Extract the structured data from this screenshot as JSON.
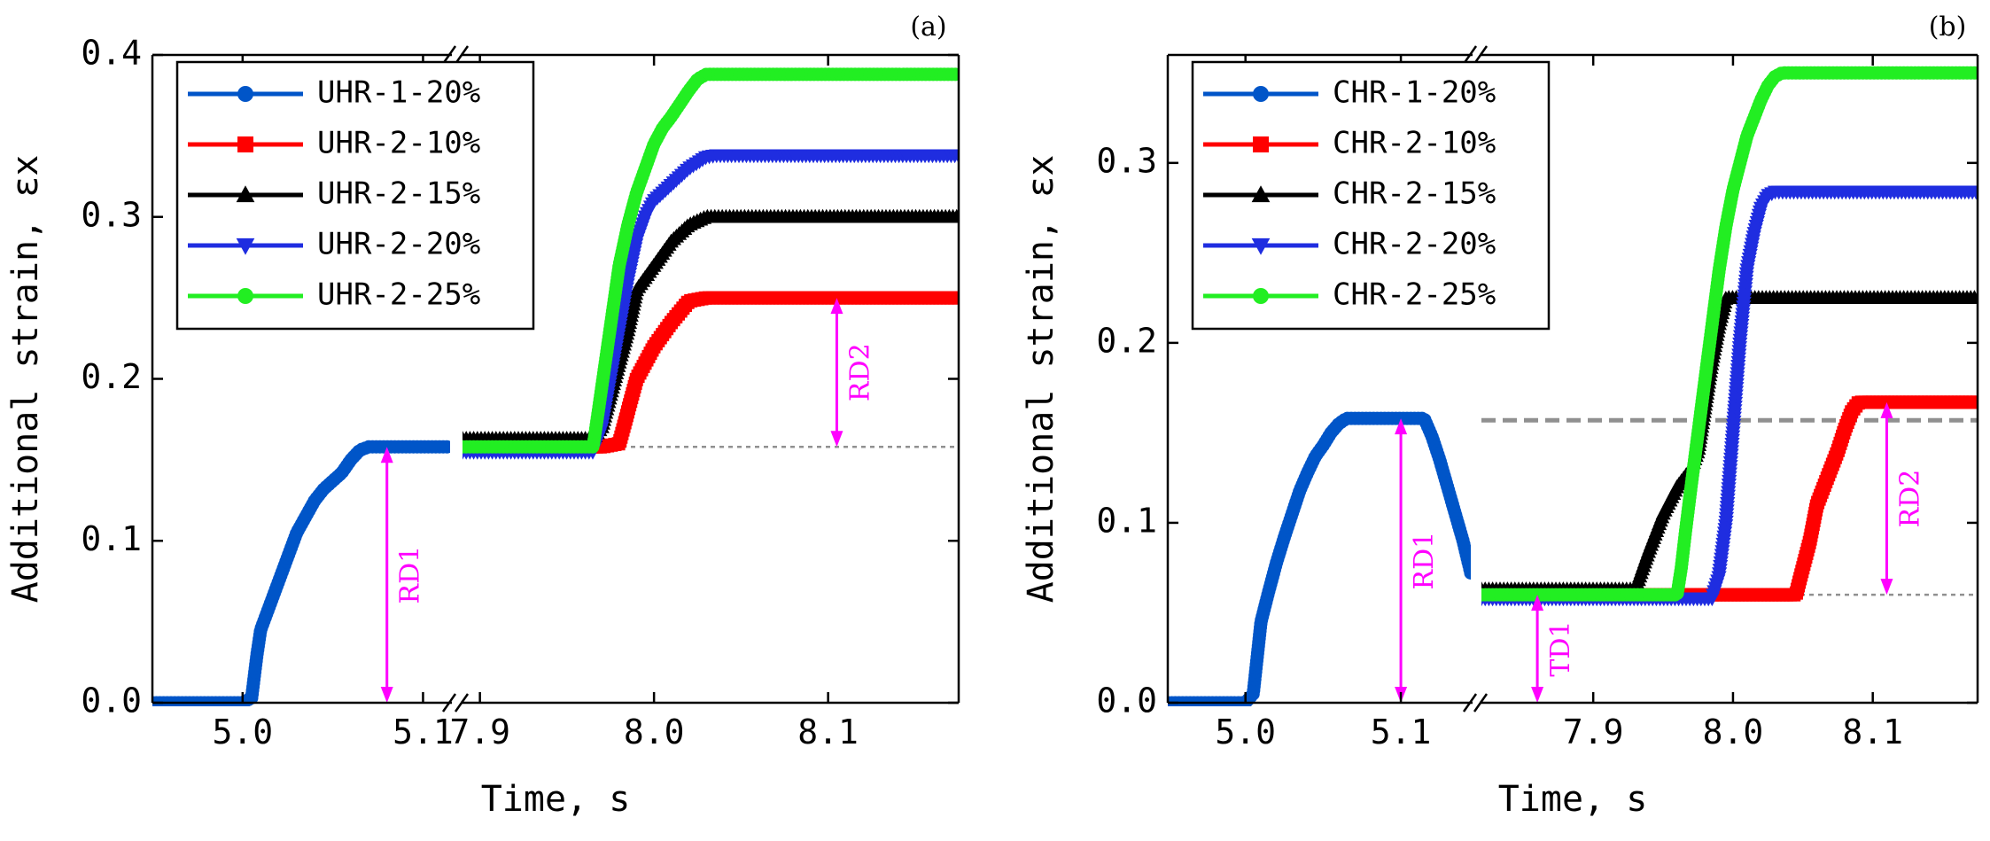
{
  "chart_data": [
    {
      "type": "line",
      "panel_label": "(a)",
      "xlabel": "Time, s",
      "ylabel": "Additional strain, εx",
      "ylim": [
        0,
        0.4
      ],
      "yticks": [
        "0.0",
        "0.1",
        "0.2",
        "0.3",
        "0.4"
      ],
      "xticks": [
        {
          "segment": 1,
          "value": 5.0,
          "label": "5.0"
        },
        {
          "segment": 1,
          "value": 5.1,
          "label": "5.1"
        },
        {
          "segment": 2,
          "value": 7.9,
          "label": "7.9"
        },
        {
          "segment": 2,
          "value": 8.0,
          "label": "8.0"
        },
        {
          "segment": 2,
          "value": 8.1,
          "label": "8.1"
        }
      ],
      "broken_axis": true,
      "segment1_xlim": [
        4.95,
        5.115
      ],
      "segment2_xlim": [
        7.89,
        8.175
      ],
      "legend_position": "top-left",
      "series": [
        {
          "name": "UHR-1-20%",
          "color": "#0055c8",
          "marker": "circle",
          "segment": 1,
          "x": [
            4.95,
            5.0,
            5.005,
            5.008,
            5.01,
            5.015,
            5.02,
            5.025,
            5.03,
            5.035,
            5.04,
            5.045,
            5.05,
            5.055,
            5.06,
            5.065,
            5.07,
            5.075,
            5.08,
            5.085,
            5.09,
            5.095,
            5.1,
            5.115
          ],
          "y": [
            0.0,
            0.0,
            0.003,
            0.03,
            0.045,
            0.06,
            0.075,
            0.09,
            0.105,
            0.115,
            0.125,
            0.132,
            0.137,
            0.142,
            0.15,
            0.156,
            0.158,
            0.158,
            0.158,
            0.158,
            0.158,
            0.158,
            0.158,
            0.158
          ]
        },
        {
          "name": "UHR-2-10%",
          "color": "#ff0000",
          "marker": "square",
          "segment": 2,
          "x": [
            7.89,
            7.97,
            7.98,
            7.985,
            7.99,
            8.0,
            8.01,
            8.02,
            8.03,
            8.175
          ],
          "y": [
            0.158,
            0.158,
            0.16,
            0.18,
            0.2,
            0.22,
            0.235,
            0.248,
            0.25,
            0.25
          ]
        },
        {
          "name": "UHR-2-15%",
          "color": "#000000",
          "marker": "triangle-up",
          "segment": 2,
          "x": [
            7.89,
            7.965,
            7.97,
            7.975,
            7.98,
            7.985,
            7.99,
            8.0,
            8.01,
            8.02,
            8.03,
            8.175
          ],
          "y": [
            0.163,
            0.163,
            0.17,
            0.19,
            0.21,
            0.23,
            0.255,
            0.27,
            0.285,
            0.295,
            0.3,
            0.3
          ]
        },
        {
          "name": "UHR-2-20%",
          "color": "#1f2de0",
          "marker": "triangle-down",
          "segment": 2,
          "x": [
            7.89,
            7.965,
            7.97,
            7.975,
            7.98,
            7.985,
            7.99,
            7.995,
            8.0,
            8.01,
            8.02,
            8.03,
            8.035,
            8.175
          ],
          "y": [
            0.155,
            0.155,
            0.17,
            0.2,
            0.23,
            0.26,
            0.285,
            0.3,
            0.31,
            0.32,
            0.33,
            0.337,
            0.338,
            0.338
          ]
        },
        {
          "name": "UHR-2-25%",
          "color": "#22ee22",
          "marker": "circle",
          "segment": 2,
          "x": [
            7.89,
            7.965,
            7.968,
            7.972,
            7.976,
            7.98,
            7.985,
            7.99,
            7.995,
            8.0,
            8.005,
            8.01,
            8.015,
            8.02,
            8.025,
            8.03,
            8.035,
            8.175
          ],
          "y": [
            0.158,
            0.158,
            0.18,
            0.21,
            0.24,
            0.27,
            0.295,
            0.315,
            0.33,
            0.345,
            0.355,
            0.362,
            0.37,
            0.378,
            0.385,
            0.388,
            0.388,
            0.388
          ]
        }
      ],
      "annotations": [
        {
          "label": "RD1",
          "segment": 1,
          "x": 5.08,
          "y_from": 0.0,
          "y_to": 0.158
        },
        {
          "label": "RD2",
          "segment": 2,
          "x": 8.105,
          "y_from": 0.158,
          "y_to": 0.25
        }
      ],
      "reference_lines": [
        {
          "segment": 2,
          "y": 0.158,
          "style": "dotted"
        }
      ]
    },
    {
      "type": "line",
      "panel_label": "(b)",
      "xlabel": "Time, s",
      "ylabel": "Additional strain, εx",
      "ylim": [
        0,
        0.36
      ],
      "yticks": [
        "0.0",
        "0.1",
        "0.2",
        "0.3"
      ],
      "xticks": [
        {
          "segment": 1,
          "value": 5.0,
          "label": "5.0"
        },
        {
          "segment": 1,
          "value": 5.1,
          "label": "5.1"
        },
        {
          "segment": 2,
          "value": 7.9,
          "label": "7.9"
        },
        {
          "segment": 2,
          "value": 8.0,
          "label": "8.0"
        },
        {
          "segment": 2,
          "value": 8.1,
          "label": "8.1"
        }
      ],
      "broken_axis": true,
      "segment1_xlim": [
        4.95,
        5.145
      ],
      "segment2_xlim": [
        7.82,
        8.175
      ],
      "legend_position": "top-left",
      "series": [
        {
          "name": "CHR-1-20%",
          "color": "#0055c8",
          "marker": "circle",
          "segment": 1,
          "x": [
            4.95,
            5.0,
            5.005,
            5.01,
            5.015,
            5.02,
            5.025,
            5.03,
            5.035,
            5.04,
            5.045,
            5.05,
            5.055,
            5.06,
            5.065,
            5.07,
            5.08,
            5.09,
            5.1,
            5.11,
            5.115,
            5.12,
            5.125,
            5.13,
            5.135,
            5.14,
            5.145
          ],
          "y": [
            0.0,
            0.0,
            0.005,
            0.045,
            0.062,
            0.078,
            0.092,
            0.105,
            0.118,
            0.128,
            0.137,
            0.143,
            0.15,
            0.155,
            0.158,
            0.158,
            0.158,
            0.158,
            0.158,
            0.158,
            0.158,
            0.148,
            0.135,
            0.12,
            0.105,
            0.09,
            0.072
          ]
        },
        {
          "name": "CHR-2-10%",
          "color": "#ff0000",
          "marker": "square",
          "segment": 2,
          "x": [
            7.82,
            8.045,
            8.05,
            8.055,
            8.06,
            8.065,
            8.07,
            8.075,
            8.08,
            8.085,
            8.09,
            8.175
          ],
          "y": [
            0.06,
            0.06,
            0.075,
            0.09,
            0.11,
            0.12,
            0.13,
            0.14,
            0.152,
            0.162,
            0.167,
            0.167
          ]
        },
        {
          "name": "CHR-2-15%",
          "color": "#000000",
          "marker": "triangle-up",
          "segment": 2,
          "x": [
            7.82,
            7.93,
            7.94,
            7.95,
            7.96,
            7.97,
            7.975,
            7.98,
            7.985,
            7.99,
            7.995,
            8.175
          ],
          "y": [
            0.063,
            0.063,
            0.085,
            0.105,
            0.12,
            0.13,
            0.14,
            0.165,
            0.19,
            0.21,
            0.225,
            0.225
          ]
        },
        {
          "name": "CHR-2-20%",
          "color": "#1f2de0",
          "marker": "triangle-down",
          "segment": 2,
          "x": [
            7.82,
            7.985,
            7.99,
            7.995,
            8.0,
            8.005,
            8.01,
            8.015,
            8.02,
            8.025,
            8.03,
            8.035,
            8.175
          ],
          "y": [
            0.058,
            0.058,
            0.07,
            0.1,
            0.15,
            0.2,
            0.24,
            0.26,
            0.275,
            0.282,
            0.284,
            0.284,
            0.284
          ]
        },
        {
          "name": "CHR-2-25%",
          "color": "#22ee22",
          "marker": "circle",
          "segment": 2,
          "x": [
            7.82,
            7.96,
            7.963,
            7.966,
            7.97,
            7.975,
            7.98,
            7.985,
            7.99,
            7.995,
            8.0,
            8.005,
            8.01,
            8.015,
            8.02,
            8.025,
            8.03,
            8.035,
            8.175
          ],
          "y": [
            0.06,
            0.06,
            0.075,
            0.095,
            0.12,
            0.15,
            0.18,
            0.21,
            0.24,
            0.265,
            0.285,
            0.3,
            0.315,
            0.325,
            0.335,
            0.343,
            0.348,
            0.35,
            0.35
          ]
        }
      ],
      "annotations": [
        {
          "label": "RD1",
          "segment": 1,
          "x": 5.1,
          "y_from": 0.0,
          "y_to": 0.158
        },
        {
          "label": "TD1",
          "segment": 2,
          "x": 7.86,
          "y_from": 0.0,
          "y_to": 0.06
        },
        {
          "label": "RD2",
          "segment": 2,
          "x": 8.11,
          "y_from": 0.06,
          "y_to": 0.167
        }
      ],
      "reference_lines": [
        {
          "segment": 2,
          "y": 0.157,
          "style": "dashed"
        },
        {
          "segment": 2,
          "y": 0.06,
          "style": "dotted"
        }
      ]
    }
  ]
}
